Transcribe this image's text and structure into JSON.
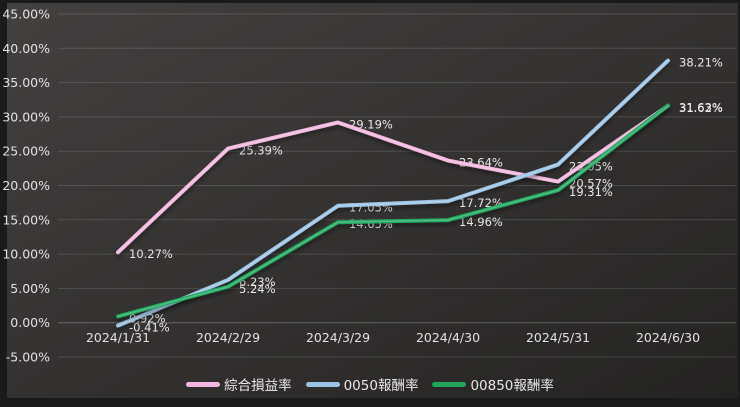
{
  "chart_data": {
    "type": "line",
    "categories": [
      "2024/1/31",
      "2024/2/29",
      "2024/3/29",
      "2024/4/30",
      "2024/5/31",
      "2024/6/30"
    ],
    "series": [
      {
        "id": "composite-pnl",
        "name": "綜合損益率",
        "color": "#f2b7de",
        "values": [
          10.27,
          25.39,
          29.19,
          23.64,
          20.57,
          31.62
        ],
        "labels": [
          "10.27%",
          "25.39%",
          "29.19%",
          "23.64%",
          "20.57%",
          "31.62%"
        ]
      },
      {
        "id": "etf-0050",
        "name": "0050報酬率",
        "color": "#9cc3e5",
        "values": [
          -0.41,
          6.23,
          17.05,
          17.72,
          23.05,
          38.21
        ],
        "labels": [
          "-0.41%",
          "6.23%",
          "17.05%",
          "17.72%",
          "23.05%",
          "38.21%"
        ]
      },
      {
        "id": "etf-00850",
        "name": "00850報酬率",
        "color": "#1fa75c",
        "values": [
          0.92,
          5.24,
          14.65,
          14.96,
          19.31,
          31.63
        ],
        "labels": [
          "0.92%",
          "5.24%",
          "14.65%",
          "14.96%",
          "19.31%",
          "31.63%"
        ]
      }
    ],
    "y_axis": {
      "min": -5,
      "max": 45,
      "step": 5,
      "ticks": [
        {
          "label": "45.00%",
          "value": 45
        },
        {
          "label": "40.00%",
          "value": 40
        },
        {
          "label": "35.00%",
          "value": 35
        },
        {
          "label": "30.00%",
          "value": 30
        },
        {
          "label": "25.00%",
          "value": 25
        },
        {
          "label": "20.00%",
          "value": 20
        },
        {
          "label": "15.00%",
          "value": 15
        },
        {
          "label": "10.00%",
          "value": 10
        },
        {
          "label": "5.00%",
          "value": 5
        },
        {
          "label": "0.00%",
          "value": 0
        },
        {
          "label": "-5.00%",
          "value": -5
        }
      ]
    },
    "grid": true,
    "legend_position": "bottom",
    "colors": {
      "outer_background": "#1b1a1a",
      "plot_gradient_start": "#434140",
      "plot_gradient_end": "#242322",
      "gridline": "#4c4c4c",
      "text": "#e3e1e0"
    }
  }
}
